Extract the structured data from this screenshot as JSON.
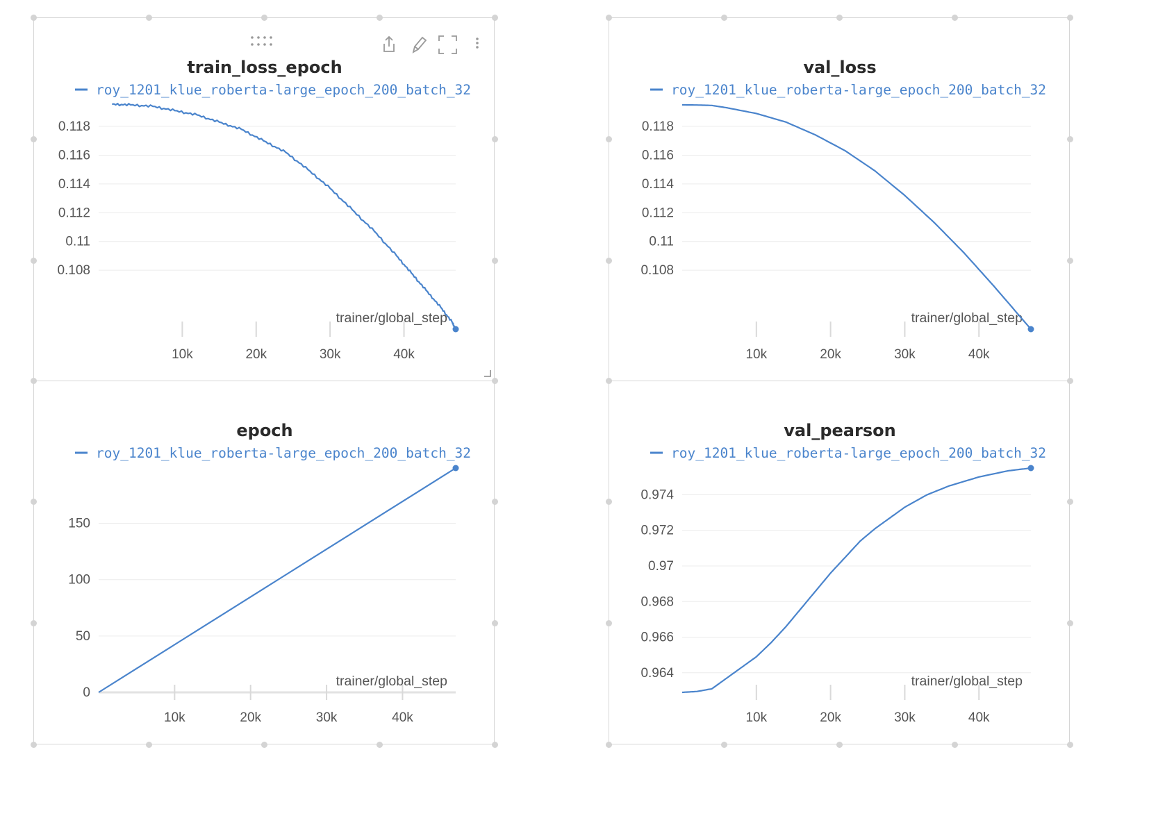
{
  "panels": [
    {
      "key": "train_loss_epoch",
      "toolbar": true,
      "chart_data": {
        "type": "line",
        "title": "train_loss_epoch",
        "xlabel": "trainer/global_step",
        "ylabel": "",
        "series": [
          {
            "name": "roy_1201_klue_roberta-large_epoch_200_batch_32",
            "color": "#4a84cc",
            "x": [
              500,
              3000,
              6000,
              9000,
              12000,
              15000,
              18000,
              21000,
              24000,
              27000,
              30000,
              33000,
              36000,
              39000,
              41000,
              43000,
              45000,
              46500,
              47000
            ],
            "y": [
              0.11955,
              0.1195,
              0.1194,
              0.1191,
              0.1188,
              0.1183,
              0.1178,
              0.117,
              0.1162,
              0.115,
              0.1137,
              0.1122,
              0.1107,
              0.109,
              0.1078,
              0.1066,
              0.1054,
              0.1044,
              0.1039
            ]
          }
        ],
        "xlim": [
          0,
          47000
        ],
        "ylim": [
          0.1039,
          0.1195
        ],
        "xticks": [
          10000,
          20000,
          30000,
          40000
        ],
        "xtick_labels": [
          "10k",
          "20k",
          "30k",
          "40k"
        ],
        "yticks": [
          0.108,
          0.11,
          0.112,
          0.114,
          0.116,
          0.118
        ],
        "ytick_labels": [
          "0.108",
          "0.11",
          "0.112",
          "0.114",
          "0.116",
          "0.118"
        ],
        "legend_placement": "top",
        "grid": true
      }
    },
    {
      "key": "val_loss",
      "toolbar": false,
      "chart_data": {
        "type": "line",
        "title": "val_loss",
        "xlabel": "trainer/global_step",
        "ylabel": "",
        "series": [
          {
            "name": "roy_1201_klue_roberta-large_epoch_200_batch_32",
            "color": "#4a84cc",
            "x": [
              0,
              2000,
              4000,
              6000,
              8000,
              10000,
              14000,
              18000,
              22000,
              26000,
              30000,
              34000,
              38000,
              42000,
              47000
            ],
            "y": [
              0.1195,
              0.11949,
              0.11946,
              0.1193,
              0.1191,
              0.1189,
              0.1183,
              0.1174,
              0.1163,
              0.1149,
              0.1132,
              0.1113,
              0.1092,
              0.1069,
              0.1039
            ]
          }
        ],
        "xlim": [
          0,
          47000
        ],
        "ylim": [
          0.1039,
          0.1195
        ],
        "xticks": [
          10000,
          20000,
          30000,
          40000
        ],
        "xtick_labels": [
          "10k",
          "20k",
          "30k",
          "40k"
        ],
        "yticks": [
          0.108,
          0.11,
          0.112,
          0.114,
          0.116,
          0.118
        ],
        "ytick_labels": [
          "0.108",
          "0.11",
          "0.112",
          "0.114",
          "0.116",
          "0.118"
        ],
        "legend_placement": "top",
        "grid": true
      }
    },
    {
      "key": "epoch",
      "toolbar": false,
      "chart_data": {
        "type": "line",
        "title": "epoch",
        "xlabel": "trainer/global_step",
        "ylabel": "",
        "series": [
          {
            "name": "roy_1201_klue_roberta-large_epoch_200_batch_32",
            "color": "#4a84cc",
            "x": [
              0,
              47000
            ],
            "y": [
              0,
              199
            ]
          }
        ],
        "xlim": [
          0,
          47000
        ],
        "ylim": [
          0,
          199
        ],
        "xticks": [
          10000,
          20000,
          30000,
          40000
        ],
        "xtick_labels": [
          "10k",
          "20k",
          "30k",
          "40k"
        ],
        "yticks": [
          0,
          50,
          100,
          150
        ],
        "ytick_labels": [
          "0",
          "50",
          "100",
          "150"
        ],
        "legend_placement": "top",
        "grid": true
      }
    },
    {
      "key": "val_pearson",
      "toolbar": false,
      "chart_data": {
        "type": "line",
        "title": "val_pearson",
        "xlabel": "trainer/global_step",
        "ylabel": "",
        "series": [
          {
            "name": "roy_1201_klue_roberta-large_epoch_200_batch_32",
            "color": "#4a84cc",
            "x": [
              0,
              2000,
              4000,
              6000,
              8000,
              10000,
              12000,
              14000,
              16000,
              18000,
              20000,
              22000,
              24000,
              26000,
              28000,
              30000,
              33000,
              36000,
              40000,
              44000,
              47000
            ],
            "y": [
              0.9629,
              0.96295,
              0.9631,
              0.9637,
              0.9643,
              0.9649,
              0.9657,
              0.9666,
              0.9676,
              0.9686,
              0.9696,
              0.9705,
              0.9714,
              0.9721,
              0.9727,
              0.9733,
              0.974,
              0.9745,
              0.975,
              0.97535,
              0.9755
            ]
          }
        ],
        "xlim": [
          0,
          47000
        ],
        "ylim": [
          0.9629,
          0.9755
        ],
        "xticks": [
          10000,
          20000,
          30000,
          40000
        ],
        "xtick_labels": [
          "10k",
          "20k",
          "30k",
          "40k"
        ],
        "yticks": [
          0.964,
          0.966,
          0.968,
          0.97,
          0.972,
          0.974
        ],
        "ytick_labels": [
          "0.964",
          "0.966",
          "0.968",
          "0.97",
          "0.972",
          "0.974"
        ],
        "legend_placement": "top",
        "grid": true
      }
    }
  ]
}
